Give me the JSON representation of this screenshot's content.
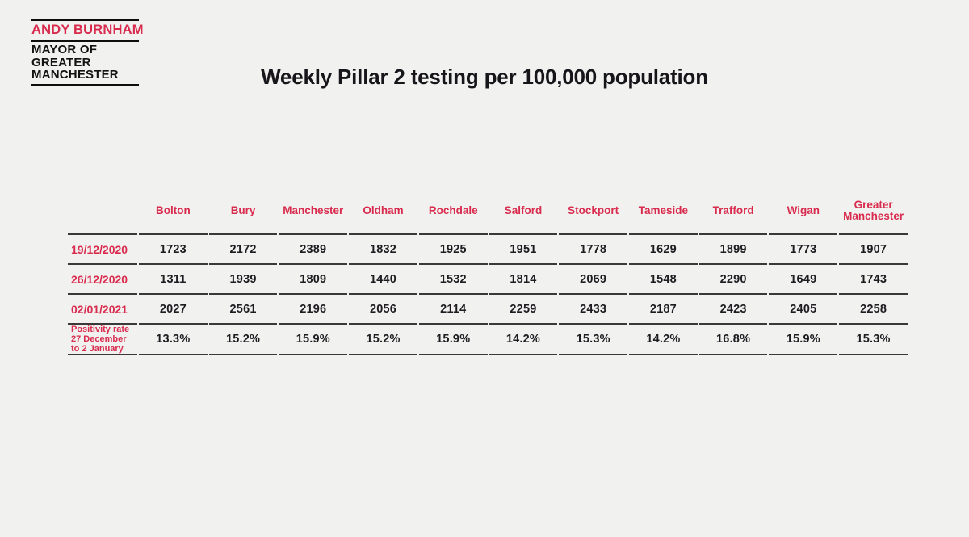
{
  "logo": {
    "name": "ANDY BURNHAM",
    "title_lines": [
      "MAYOR OF",
      "GREATER",
      "MANCHESTER"
    ]
  },
  "title": "Weekly Pillar 2 testing per 100,000 population",
  "colors": {
    "accent_red": "#d92b4e",
    "text_dark": "#1e1c21",
    "rule": "#3a3937",
    "background": "#f1f1ef"
  },
  "chart_data": {
    "type": "table",
    "title": "Weekly Pillar 2 testing per 100,000 population",
    "categories": [
      "Bolton",
      "Bury",
      "Manchester",
      "Oldham",
      "Rochdale",
      "Salford",
      "Stockport",
      "Tameside",
      "Trafford",
      "Wigan",
      "Greater Manchester"
    ],
    "series": [
      {
        "name": "19/12/2020",
        "values": [
          1723,
          2172,
          2389,
          1832,
          1925,
          1951,
          1778,
          1629,
          1899,
          1773,
          1907
        ]
      },
      {
        "name": "26/12/2020",
        "values": [
          1311,
          1939,
          1809,
          1440,
          1532,
          1814,
          2069,
          1548,
          2290,
          1649,
          1743
        ]
      },
      {
        "name": "02/01/2021",
        "values": [
          2027,
          2561,
          2196,
          2056,
          2114,
          2259,
          2433,
          2187,
          2423,
          2405,
          2258
        ]
      },
      {
        "name": "Positivity rate 27 December to 2 January",
        "name_lines": [
          "Positivity rate",
          "27 December",
          "to 2 January"
        ],
        "values": [
          "13.3%",
          "15.2%",
          "15.9%",
          "15.2%",
          "15.9%",
          "14.2%",
          "15.3%",
          "14.2%",
          "16.8%",
          "15.9%",
          "15.3%"
        ]
      }
    ],
    "layout": {
      "header_text_color": "#d92b4e",
      "grid": "horizontal-rules-only",
      "legend": "none"
    }
  }
}
